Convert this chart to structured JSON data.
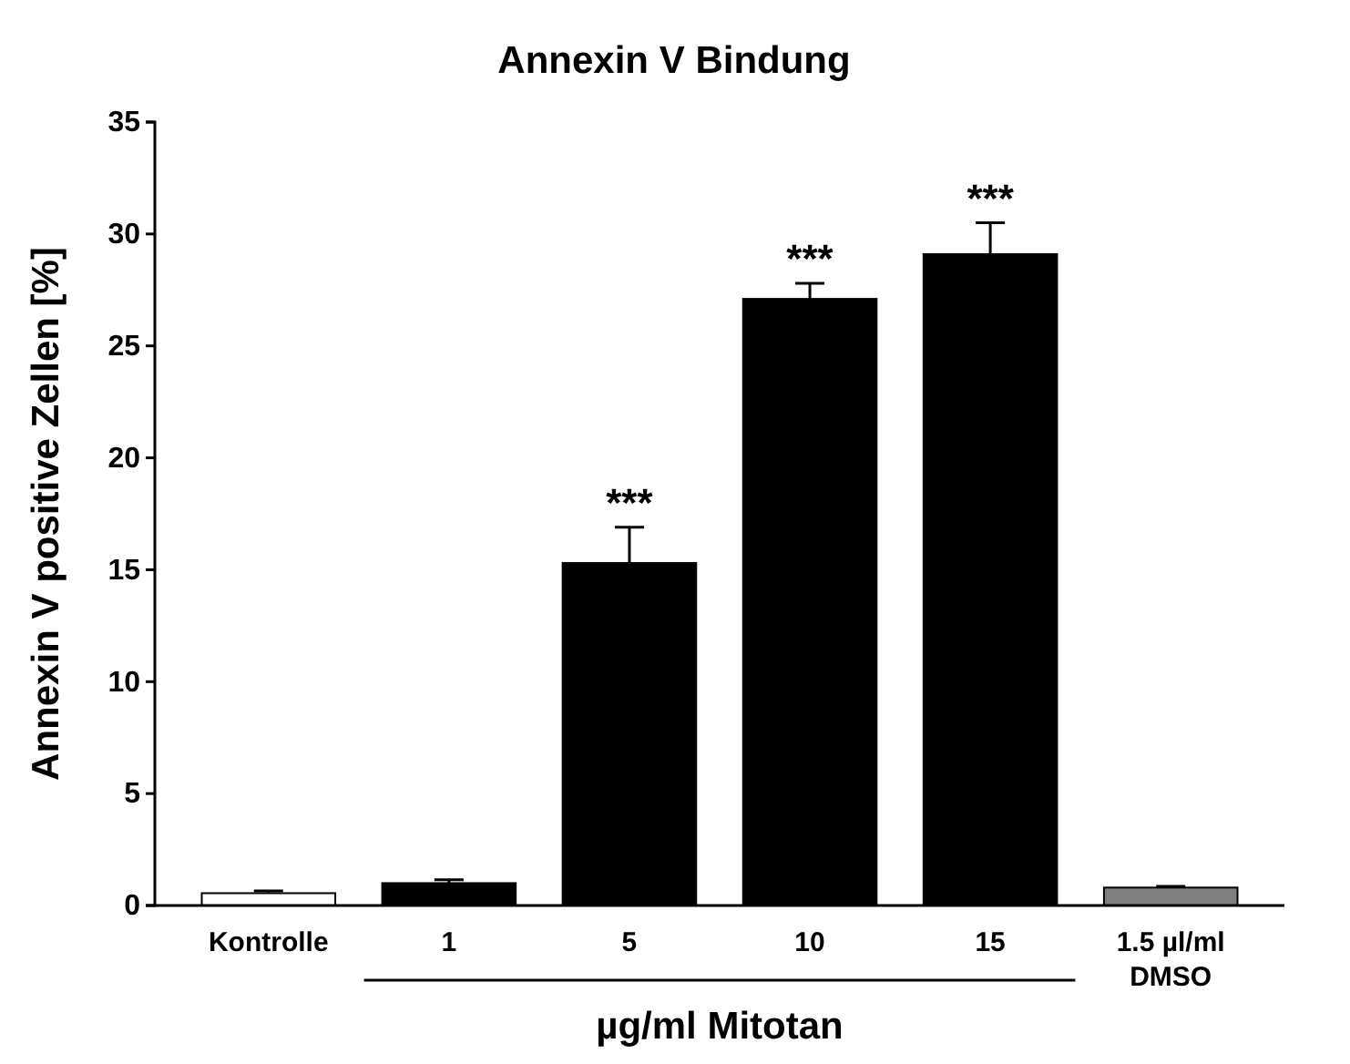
{
  "chart_data": {
    "type": "bar",
    "title": "Annexin V Bindung",
    "xlabel": "µg/ml Mitotan",
    "ylabel": "Annexin V  positive Zellen  [%]",
    "categories": [
      "Kontrolle",
      "1",
      "5",
      "10",
      "15",
      "1.5 µl/ml\nDMSO"
    ],
    "values": [
      0.55,
      1.0,
      15.3,
      27.1,
      29.1,
      0.8
    ],
    "colors": [
      "#ffffff",
      "#000000",
      "#000000",
      "#000000",
      "#000000",
      "#808080"
    ],
    "errors": [
      [
        0.55,
        0.65
      ],
      [
        1.0,
        1.15
      ],
      [
        15.3,
        16.9
      ],
      [
        27.1,
        27.8
      ],
      [
        29.1,
        30.5
      ],
      [
        0.8,
        0.85
      ]
    ],
    "ylim": [
      0,
      35
    ],
    "yticks": [
      0,
      5,
      10,
      15,
      20,
      25,
      30,
      35
    ],
    "grid": false,
    "annotations": [
      {
        "text": "***",
        "x": "5",
        "y": 16.9
      },
      {
        "text": "***",
        "x": "10",
        "y": 27.8
      },
      {
        "text": "***",
        "x": "15",
        "y": 30.5
      }
    ]
  }
}
